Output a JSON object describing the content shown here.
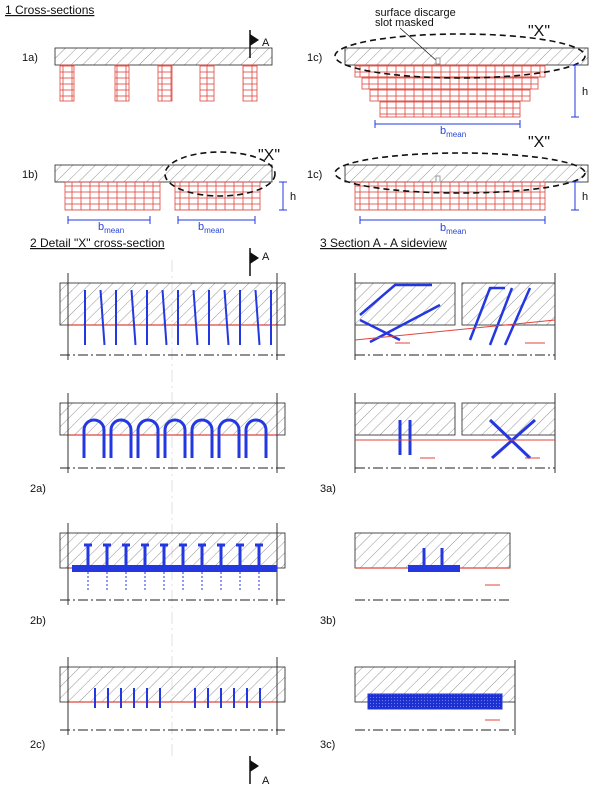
{
  "section_1": {
    "title": "1 Cross-sections",
    "panels": [
      {
        "label": "1a)",
        "marker": "A"
      },
      {
        "label": "1b)",
        "callout": "\"X\"",
        "dimension": "h",
        "widths": [
          {
            "symbol": "b",
            "subscript": "mean"
          },
          {
            "symbol": "b",
            "subscript": "mean"
          }
        ]
      },
      {
        "label": "1c)",
        "note": [
          "surface discarge",
          "slot masked"
        ],
        "callout": "\"X\"",
        "dimension": "h",
        "widths": [
          {
            "symbol": "b",
            "subscript": "mean"
          }
        ]
      },
      {
        "label": "1c)",
        "callout": "\"X\"",
        "dimension": "h",
        "widths": [
          {
            "symbol": "b",
            "subscript": "mean"
          }
        ]
      }
    ]
  },
  "section_2": {
    "title": "2 Detail \"X\" cross-section",
    "marker": "A",
    "panels": [
      {
        "label": "2a)"
      },
      {
        "label": "2b)"
      },
      {
        "label": "2c)"
      }
    ],
    "bottom_marker": "A"
  },
  "section_3": {
    "title": "3 Section A - A sideview",
    "panels": [
      {
        "label": "3a)"
      },
      {
        "label": "3b)"
      },
      {
        "label": "3c)"
      }
    ]
  }
}
